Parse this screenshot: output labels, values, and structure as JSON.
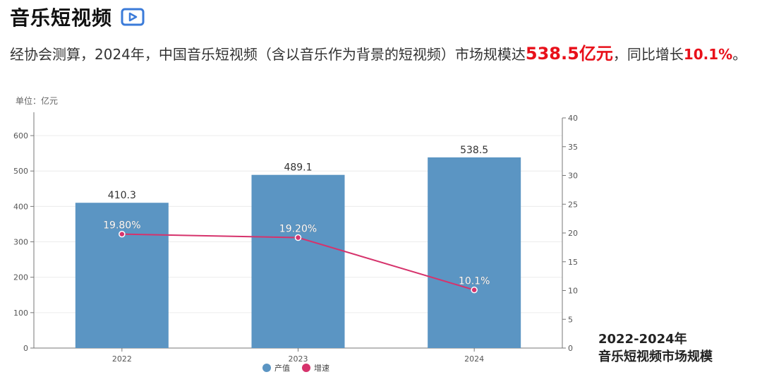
{
  "header": {
    "title": "音乐短视频",
    "icon": "video-play-icon",
    "icon_color": "#3b7bd9"
  },
  "summary": {
    "text_1": "经协会测算，2024年，中国音乐短视频（含以音乐作为背景的短视频）市场规模达",
    "value_1": "538.5亿元",
    "text_2": "，同比增长",
    "value_2": "10.1%",
    "text_3": "。"
  },
  "side_caption": {
    "line1": "2022-2024年",
    "line2": "音乐短视频市场规模"
  },
  "chart_data": {
    "type": "bar",
    "unit_label": "单位：亿元",
    "categories": [
      "2022",
      "2023",
      "2024"
    ],
    "series": [
      {
        "name": "产值",
        "type": "bar",
        "axis": "left",
        "color": "#5b95c3",
        "values": [
          410.3,
          489.1,
          538.5
        ],
        "labels": [
          "410.3",
          "489.1",
          "538.5"
        ]
      },
      {
        "name": "增速",
        "type": "line",
        "axis": "right",
        "color": "#d6336c",
        "values": [
          19.8,
          19.2,
          10.1
        ],
        "labels": [
          "19.80%",
          "19.20%",
          "10.1%"
        ]
      }
    ],
    "y_left": {
      "min": 0,
      "max": 650,
      "ticks": [
        0,
        100,
        200,
        300,
        400,
        500,
        600
      ]
    },
    "y_right": {
      "min": 0,
      "max": 40,
      "ticks": [
        0,
        5,
        10,
        15,
        20,
        25,
        30,
        35,
        40
      ]
    },
    "legend_position": "bottom-center",
    "grid": true
  }
}
